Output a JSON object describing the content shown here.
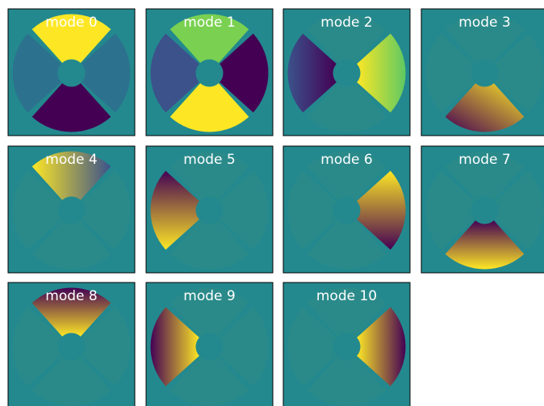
{
  "chart_data": {
    "type": "image",
    "panels": [
      "mode 0",
      "mode 1",
      "mode 2",
      "mode 3",
      "mode 4",
      "mode 5",
      "mode 6",
      "mode 7",
      "mode 8",
      "mode 9",
      "mode 10"
    ]
  }
}
